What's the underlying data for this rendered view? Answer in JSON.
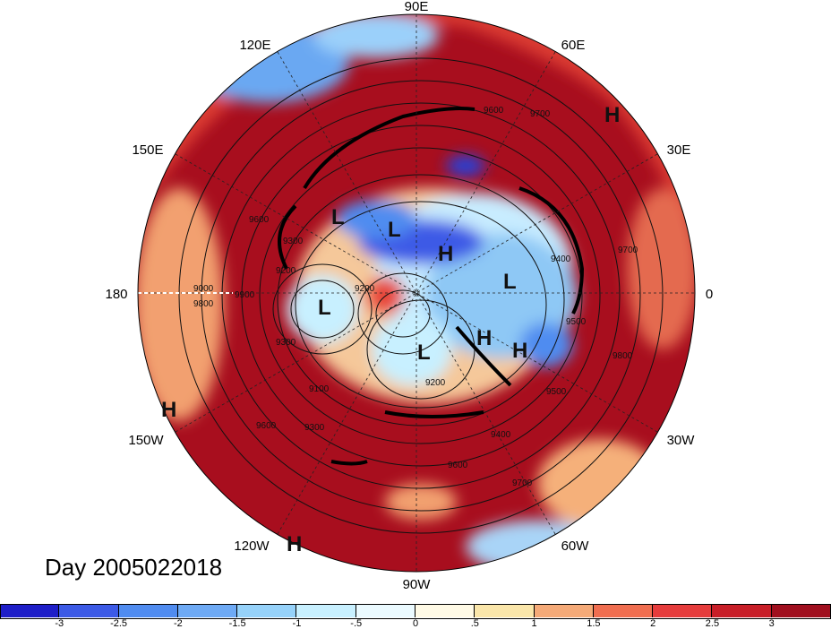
{
  "title": "Day 2005022018",
  "longitude_labels": {
    "e90": "90E",
    "e120": "120E",
    "e60": "60E",
    "e150": "150E",
    "e30": "30E",
    "w180": "180",
    "zero": "0",
    "w150": "150W",
    "w30": "30W",
    "w120": "120W",
    "w60": "60W",
    "w90": "90W"
  },
  "contour_labels": [
    "9600",
    "9700",
    "9600",
    "9300",
    "9200",
    "9200",
    "9900",
    "9000",
    "9800",
    "9700",
    "9500",
    "9400",
    "9300",
    "9100",
    "9200",
    "9300",
    "9400",
    "9500",
    "9600",
    "9700",
    "9800",
    "9600"
  ],
  "pressure_centers": [
    "H",
    "L",
    "L",
    "H",
    "L",
    "L",
    "H",
    "H",
    "L",
    "H",
    "H"
  ],
  "colorbar": {
    "colors": [
      "#1e1ec8",
      "#3c5ae6",
      "#508cf0",
      "#6eaaf5",
      "#96d2fa",
      "#c8f0ff",
      "#ebfaff",
      "#fffae6",
      "#fae6aa",
      "#f5aa78",
      "#f06e50",
      "#e63c3c",
      "#c81e28",
      "#a00f1e"
    ],
    "labels": [
      "-3",
      "-2.5",
      "-2",
      "-1.5",
      "-1",
      "-.5",
      "0",
      ".5",
      "1",
      "1.5",
      "2",
      "2.5",
      "3"
    ]
  },
  "chart_data": {
    "type": "heatmap",
    "projection": "polar stereographic, north pole centered",
    "contour_field_label_values": [
      9000,
      9100,
      9200,
      9300,
      9400,
      9500,
      9600,
      9700,
      9800,
      9900
    ],
    "colorbar_range": [
      -3,
      3
    ],
    "colorbar_step": 0.5
  }
}
